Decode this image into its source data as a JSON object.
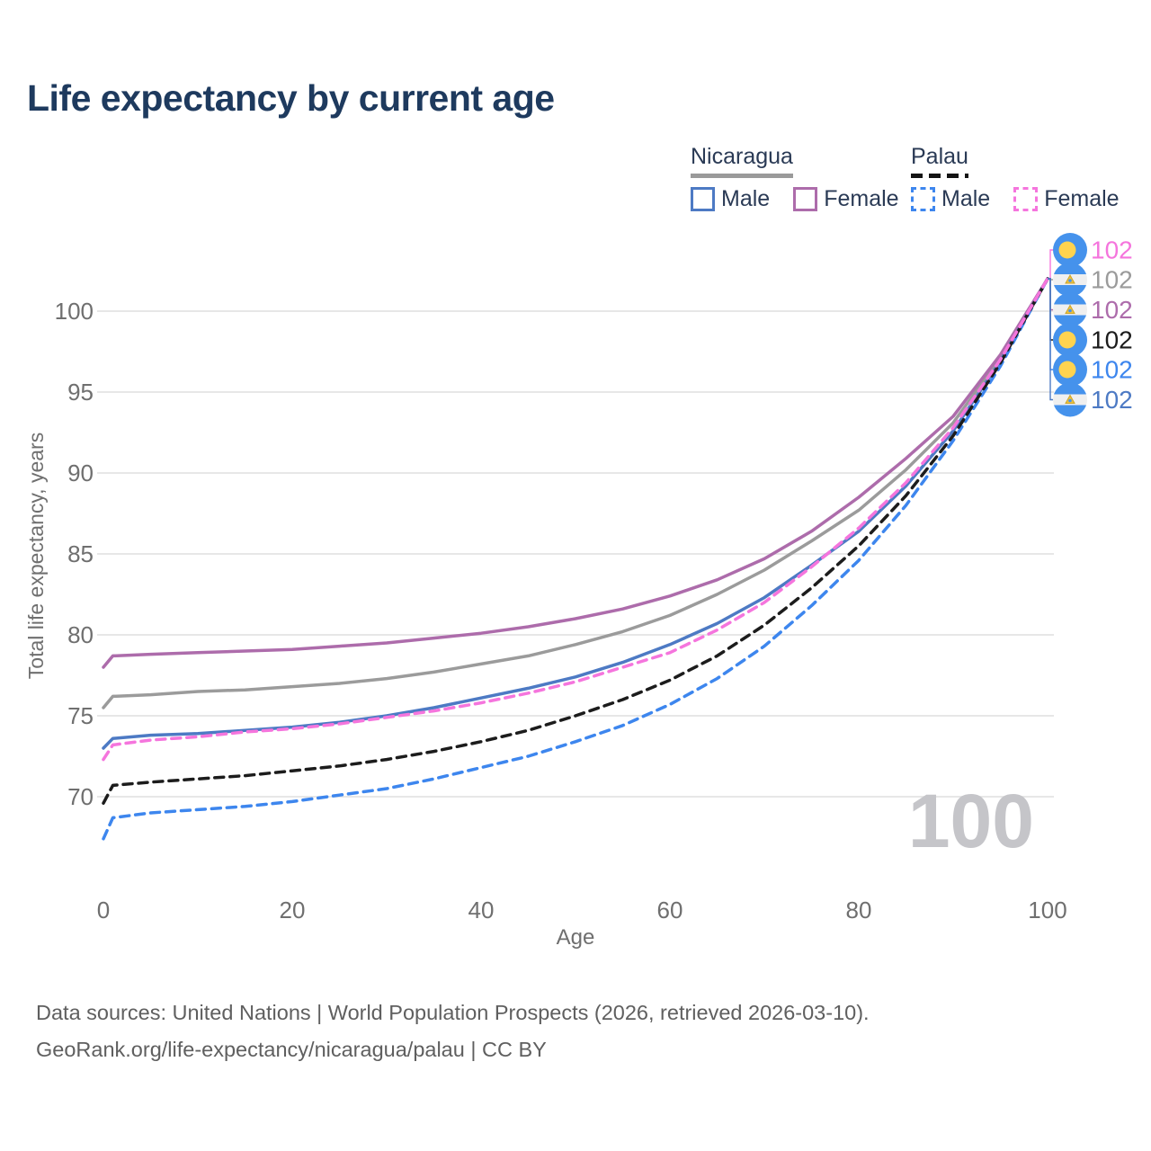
{
  "title": "Life expectancy by current age",
  "legend": {
    "groups": [
      {
        "label": "Nicaragua",
        "line_style": "solid",
        "underline_color": "#9a9a9a",
        "items": [
          {
            "label": "Male",
            "color": "#4d7ac4",
            "dashed": false
          },
          {
            "label": "Female",
            "color": "#ad6cab",
            "dashed": false
          }
        ]
      },
      {
        "label": "Palau",
        "line_style": "dashed",
        "underline_color": "#141414",
        "items": [
          {
            "label": "Male",
            "color": "#3d86ee",
            "dashed": true
          },
          {
            "label": "Female",
            "color": "#f575dd",
            "dashed": true
          }
        ]
      }
    ]
  },
  "chart_data": {
    "type": "line",
    "xlabel": "Age",
    "ylabel": "Total life expectancy, years",
    "xticks": [
      0,
      20,
      40,
      60,
      80,
      100
    ],
    "yticks": [
      70,
      75,
      80,
      85,
      90,
      95,
      100
    ],
    "xlim": [
      0,
      100
    ],
    "ylim": [
      66,
      103
    ],
    "grid": "horizontal",
    "watermark": "100",
    "ages": [
      0,
      1,
      5,
      10,
      15,
      20,
      25,
      30,
      35,
      40,
      45,
      50,
      55,
      60,
      65,
      70,
      75,
      80,
      85,
      90,
      95,
      100
    ],
    "series": [
      {
        "name": "Nicaragua",
        "group": "Nicaragua",
        "sex": "Both",
        "color": "#9b9b9b",
        "dashed": false,
        "values": [
          75.5,
          76.2,
          76.3,
          76.5,
          76.6,
          76.8,
          77.0,
          77.3,
          77.7,
          78.2,
          78.7,
          79.4,
          80.2,
          81.2,
          82.5,
          84.0,
          85.8,
          87.7,
          90.2,
          93.1,
          97.1,
          102
        ]
      },
      {
        "name": "Nicaragua Female",
        "group": "Nicaragua",
        "sex": "Female",
        "color": "#ad6cab",
        "dashed": false,
        "values": [
          78.0,
          78.7,
          78.8,
          78.9,
          79.0,
          79.1,
          79.3,
          79.5,
          79.8,
          80.1,
          80.5,
          81.0,
          81.6,
          82.4,
          83.4,
          84.7,
          86.4,
          88.5,
          90.9,
          93.5,
          97.3,
          102
        ]
      },
      {
        "name": "Nicaragua Male",
        "group": "Nicaragua",
        "sex": "Male",
        "color": "#4d7ac4",
        "dashed": false,
        "values": [
          73.0,
          73.6,
          73.8,
          73.9,
          74.1,
          74.3,
          74.6,
          75.0,
          75.5,
          76.1,
          76.7,
          77.4,
          78.3,
          79.4,
          80.7,
          82.3,
          84.3,
          86.4,
          89.2,
          92.6,
          96.9,
          102
        ]
      },
      {
        "name": "Palau Male",
        "group": "Palau",
        "sex": "Male",
        "color": "#3d86ee",
        "dashed": true,
        "values": [
          67.4,
          68.7,
          69.0,
          69.2,
          69.4,
          69.7,
          70.1,
          70.5,
          71.1,
          71.8,
          72.5,
          73.4,
          74.4,
          75.7,
          77.3,
          79.3,
          81.8,
          84.6,
          88.0,
          92.0,
          96.6,
          102
        ]
      },
      {
        "name": "Palau",
        "group": "Palau",
        "sex": "Both",
        "color": "#1c1c1c",
        "dashed": true,
        "values": [
          69.6,
          70.7,
          70.9,
          71.1,
          71.3,
          71.6,
          71.9,
          72.3,
          72.8,
          73.4,
          74.1,
          75.0,
          76.0,
          77.2,
          78.7,
          80.6,
          82.9,
          85.5,
          88.6,
          92.3,
          96.8,
          102
        ]
      },
      {
        "name": "Palau Female",
        "group": "Palau",
        "sex": "Female",
        "color": "#f575dd",
        "dashed": true,
        "values": [
          72.3,
          73.2,
          73.5,
          73.7,
          74.0,
          74.2,
          74.5,
          74.9,
          75.3,
          75.8,
          76.4,
          77.1,
          78.0,
          78.9,
          80.3,
          82.0,
          84.2,
          86.6,
          89.4,
          92.8,
          97.0,
          102
        ]
      }
    ],
    "endpoint_labels": [
      {
        "series": "Palau Female",
        "flag": "palau",
        "value": "102",
        "color": "#f575dd"
      },
      {
        "series": "Nicaragua",
        "flag": "nicaragua",
        "value": "102",
        "color": "#9b9b9b"
      },
      {
        "series": "Nicaragua Female",
        "flag": "nicaragua",
        "value": "102",
        "color": "#ad6cab"
      },
      {
        "series": "Palau",
        "flag": "palau",
        "value": "102",
        "color": "#1c1c1c"
      },
      {
        "series": "Palau Male",
        "flag": "palau",
        "value": "102",
        "color": "#3d86ee"
      },
      {
        "series": "Nicaragua Male",
        "flag": "nicaragua",
        "value": "102",
        "color": "#4d7ac4"
      }
    ]
  },
  "footer": {
    "line1": "Data sources: United Nations | World Population Prospects (2026, retrieved 2026-03-10).",
    "line2": "GeoRank.org/life-expectancy/nicaragua/palau | CC BY"
  },
  "colors": {
    "title": "#1e3a5e",
    "axis_text": "#6f6f6f",
    "gridline": "#e7e7e7",
    "watermark": "#c5c5c9",
    "footer_text": "#5f5f5f",
    "legend_text": "#2a3a55"
  }
}
